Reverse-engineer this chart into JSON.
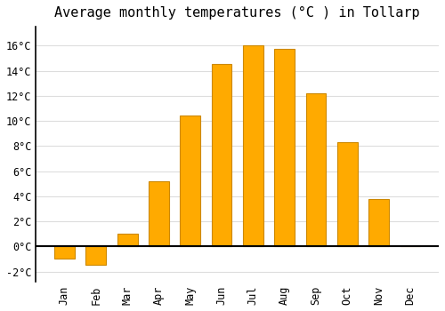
{
  "months": [
    "Jan",
    "Feb",
    "Mar",
    "Apr",
    "May",
    "Jun",
    "Jul",
    "Aug",
    "Sep",
    "Oct",
    "Nov",
    "Dec"
  ],
  "values": [
    -1.0,
    -1.5,
    1.0,
    5.2,
    10.4,
    14.5,
    16.0,
    15.7,
    12.2,
    8.3,
    3.8,
    0.0
  ],
  "bar_color": "#FFAA00",
  "bar_edge_color": "#CC8800",
  "title": "Average monthly temperatures (°C ) in Tollarp",
  "ylim": [
    -2.8,
    17.5
  ],
  "yticks": [
    -2,
    0,
    2,
    4,
    6,
    8,
    10,
    12,
    14,
    16
  ],
  "background_color": "#FFFFFF",
  "grid_color": "#DDDDDD",
  "title_fontsize": 11,
  "tick_fontsize": 8.5
}
